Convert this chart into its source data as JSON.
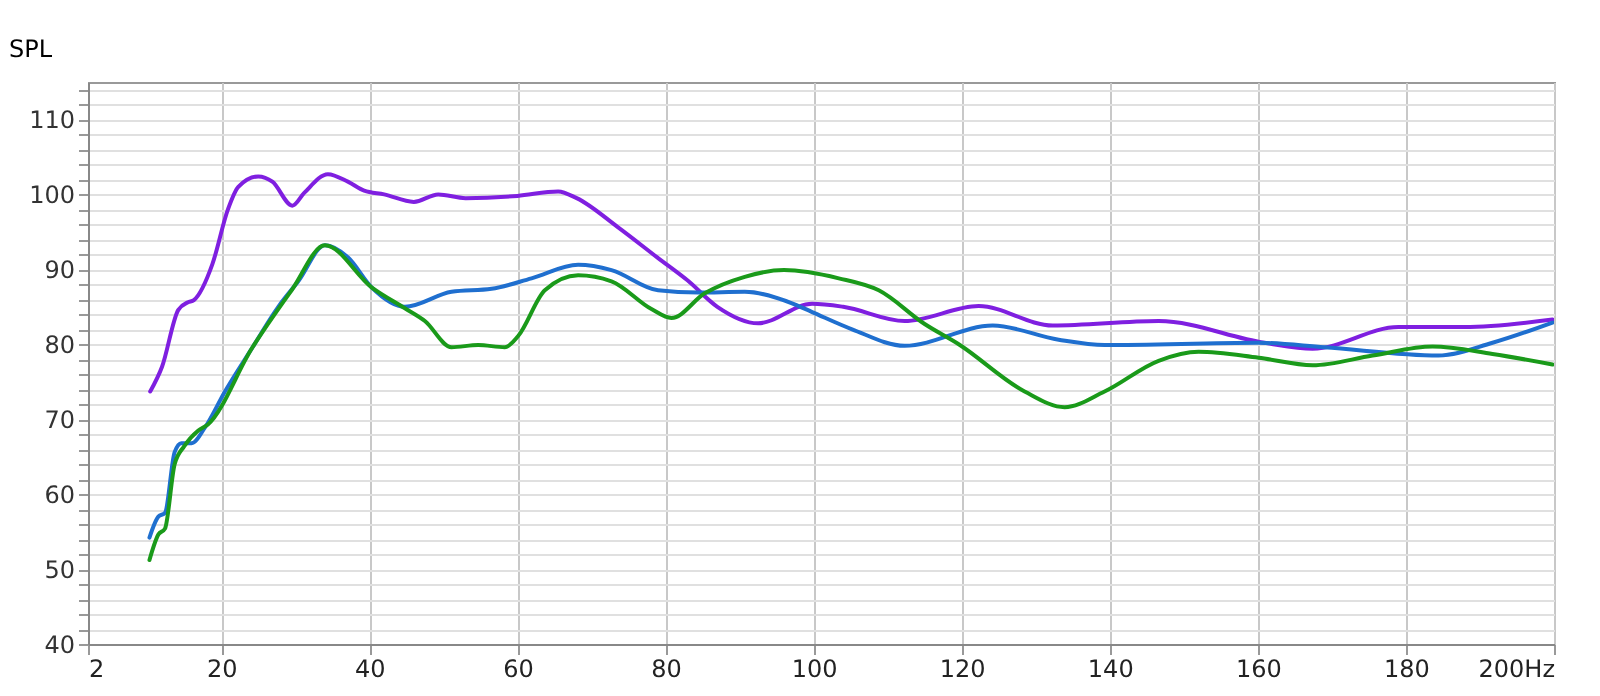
{
  "chart_data": {
    "type": "line",
    "ylabel": "SPL",
    "xlim": [
      2,
      200
    ],
    "ylim": [
      40,
      115
    ],
    "xticks": [
      2,
      20,
      40,
      60,
      80,
      100,
      120,
      140,
      160,
      180,
      {
        "value": 200,
        "label": "200Hz"
      }
    ],
    "yticks": [
      40,
      {
        "value": 42,
        "label": null
      },
      {
        "value": 44,
        "label": null
      },
      {
        "value": 46,
        "label": null
      },
      {
        "value": 48,
        "label": null
      },
      50,
      {
        "value": 52,
        "label": null
      },
      {
        "value": 54,
        "label": null
      },
      {
        "value": 56,
        "label": null
      },
      {
        "value": 58,
        "label": null
      },
      60,
      {
        "value": 62,
        "label": null
      },
      {
        "value": 64,
        "label": null
      },
      {
        "value": 66,
        "label": null
      },
      {
        "value": 68,
        "label": null
      },
      70,
      {
        "value": 72,
        "label": null
      },
      {
        "value": 74,
        "label": null
      },
      {
        "value": 76,
        "label": null
      },
      {
        "value": 78,
        "label": null
      },
      80,
      {
        "value": 82,
        "label": null
      },
      {
        "value": 84,
        "label": null
      },
      {
        "value": 86,
        "label": null
      },
      {
        "value": 88,
        "label": null
      },
      90,
      {
        "value": 92,
        "label": null
      },
      {
        "value": 94,
        "label": null
      },
      {
        "value": 96,
        "label": null
      },
      {
        "value": 98,
        "label": null
      },
      100,
      {
        "value": 102,
        "label": null
      },
      {
        "value": 104,
        "label": null
      },
      {
        "value": 106,
        "label": null
      },
      {
        "value": 108,
        "label": null
      },
      110,
      {
        "value": 112,
        "label": null
      },
      {
        "value": 114,
        "label": null
      }
    ],
    "grid": true,
    "legend": false,
    "marker": "none",
    "line_style": "solid",
    "series": [
      {
        "color": "#7f1fe0",
        "x": [
          10.4,
          12,
          14.2,
          15.5,
          16.3,
          18.8,
          20.9,
          22.3,
          25,
          26.9,
          29.6,
          31.2,
          34.4,
          37.1,
          39.3,
          42,
          46,
          49.3,
          53,
          60,
          65.5,
          68,
          73.6,
          79,
          83,
          87,
          92.5,
          99.8,
          104,
          112.3,
          122.3,
          132.3,
          146.6,
          160.9,
          167.4,
          179,
          187.9,
          199.8
        ],
        "values": [
          73.7,
          77,
          84.6,
          85.6,
          85.9,
          90.7,
          98,
          101,
          102.4,
          101.7,
          98.5,
          100.2,
          102.7,
          101.7,
          100.5,
          100,
          99,
          100,
          99.5,
          99.8,
          100.4,
          99.5,
          95.6,
          91.5,
          88.5,
          85,
          82.8,
          85.4,
          85,
          83.1,
          85.1,
          82.5,
          83.1,
          80.2,
          79.4,
          82.3,
          82.3,
          83.3
        ]
      },
      {
        "color": "#1f6fcf",
        "x": [
          10.3,
          11.5,
          12.4,
          13.7,
          14.6,
          16,
          17.8,
          20.5,
          24.1,
          27.7,
          30.4,
          34,
          37.1,
          40.3,
          44.8,
          51.1,
          56.5,
          61.9,
          68.2,
          72.7,
          79,
          84.4,
          90.7,
          97,
          99.8,
          105.2,
          112.3,
          124.2,
          133.1,
          139.3,
          160.1,
          169,
          184.4,
          191.7,
          199.8
        ],
        "values": [
          54.2,
          57,
          57.5,
          65.6,
          66.8,
          66.8,
          68.9,
          73.7,
          79.4,
          85,
          88.4,
          93.2,
          91.6,
          87.6,
          85,
          87,
          87.4,
          88.8,
          90.6,
          89.9,
          87.2,
          86.9,
          87,
          85.5,
          84.3,
          82,
          79.8,
          82.5,
          80.6,
          79.9,
          80.2,
          79.6,
          78.5,
          80.2,
          82.9
        ]
      },
      {
        "color": "#1a9a1a",
        "x": [
          10.3,
          11.5,
          12.4,
          13.7,
          15,
          16.9,
          18.2,
          24.1,
          29.5,
          34,
          40.3,
          44.8,
          47.5,
          51.1,
          54.7,
          58.3,
          60.1,
          63.7,
          68.2,
          72.7,
          78.1,
          80.8,
          85.3,
          90.7,
          96,
          103.4,
          108.8,
          115,
          119.6,
          128.5,
          133.9,
          139.3,
          146.6,
          152,
          160.1,
          167.4,
          175.5,
          183.6,
          191.7,
          199.8
        ],
        "values": [
          51.2,
          54.6,
          55.4,
          64,
          66.4,
          68.5,
          69.3,
          79.4,
          87.2,
          93.2,
          87.6,
          84.8,
          83.1,
          79.6,
          79.9,
          79.6,
          81.1,
          87.2,
          89.2,
          88.4,
          84.7,
          83.5,
          86.8,
          89,
          89.9,
          88.8,
          87.2,
          82.7,
          80,
          73.7,
          71.6,
          73.7,
          77.8,
          79,
          78.2,
          77.2,
          78.5,
          79.7,
          78.7,
          77.3
        ]
      }
    ]
  }
}
